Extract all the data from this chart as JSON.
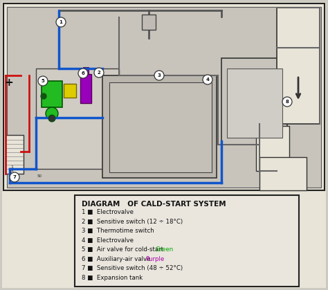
{
  "title": "DIAGRAM   OF CALD-START SYSTEM",
  "legend_items": [
    {
      "num": "1",
      "text": " ■  Electrovalve",
      "color": null,
      "color_label": null
    },
    {
      "num": "2",
      "text": " ■  Sensitive switch (12 ÷ 18°C)",
      "color": null,
      "color_label": null
    },
    {
      "num": "3",
      "text": " ■  Thermotime switch",
      "color": null,
      "color_label": null
    },
    {
      "num": "4",
      "text": " ■  Electrovalve",
      "color": null,
      "color_label": null
    },
    {
      "num": "5",
      "text": " ■  Air valve for cold-start ",
      "color": "#00aa00",
      "color_label": "Green"
    },
    {
      "num": "6",
      "text": " ■  Auxiliary-air valve  ",
      "color": "#aa00aa",
      "color_label": "Purple"
    },
    {
      "num": "7",
      "text": " ■  Sensitive switch (48 ÷ 52°C)",
      "color": null,
      "color_label": null
    },
    {
      "num": "8",
      "text": " ■  Expansion tank",
      "color": null,
      "color_label": null
    }
  ],
  "bg_color": "#ccc9c0",
  "paper_color": "#e8e4d8",
  "diagram_bg": "#c8c4bc",
  "legend_bg": "#e8e4d8",
  "border_color": "#222222",
  "text_color": "#111111",
  "blue_line": "#1155cc",
  "red_line": "#cc1111",
  "green_fill": "#22bb22",
  "purple_fill": "#9900bb",
  "yellow_fill": "#ddcc00",
  "fig_width": 4.74,
  "fig_height": 4.19,
  "dpi": 100
}
